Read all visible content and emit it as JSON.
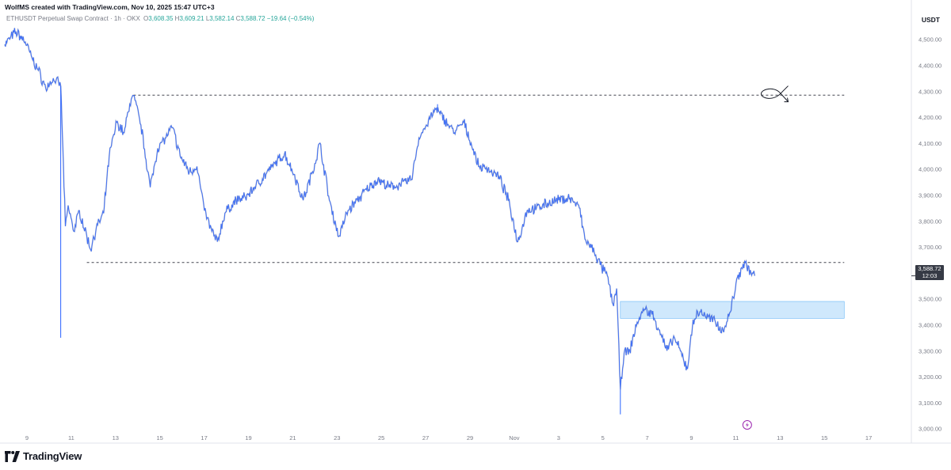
{
  "header": {
    "credit": "WolfMS created with TradingView.com, Nov 10, 2025 15:47 UTC+3",
    "symbol": "ETHUSDT Perpetual Swap Contract · 1h · OKX",
    "ohlc": {
      "o_label": "O",
      "o": "3,608.35",
      "h_label": "H",
      "h": "3,609.21",
      "l_label": "L",
      "l": "3,582.14",
      "c_label": "C",
      "c": "3,588.72",
      "change": "−19.64 (−0.54%)"
    },
    "currency": "USDT"
  },
  "price_tag": {
    "price": "3,588.72",
    "countdown": "12:03"
  },
  "brand": {
    "logo_text": "TradingView",
    "logo_icon": "tradingview-logo-icon"
  },
  "colors": {
    "series": "#2962ff",
    "series_alt": "#787b86",
    "level_line": "#434651",
    "zone_fill": "#bbdefb",
    "zone_border": "#64b5f6",
    "marker": "#9c27b0"
  },
  "chart_data": {
    "type": "line",
    "yaxis_labels": [
      "4,500.00",
      "4,400.00",
      "4,300.00",
      "4,200.00",
      "4,100.00",
      "4,000.00",
      "3,900.00",
      "3,800.00",
      "3,700.00",
      "3,600.00",
      "3,500.00",
      "3,400.00",
      "3,300.00",
      "3,200.00",
      "3,100.00",
      "3,000.00"
    ],
    "xaxis_labels": [
      "9",
      "11",
      "13",
      "15",
      "17",
      "19",
      "21",
      "23",
      "25",
      "27",
      "29",
      "Nov",
      "3",
      "5",
      "7",
      "9",
      "11",
      "13",
      "15",
      "17"
    ],
    "ylim": [
      2990,
      4560
    ],
    "x_range": [
      "2025-10-08T12:00",
      "2025-11-18T00:00"
    ],
    "series": [
      {
        "points": [
          [
            "2025-10-08T12:00",
            4480
          ],
          [
            "2025-10-09T00:00",
            4530
          ],
          [
            "2025-10-09T10:00",
            4490
          ],
          [
            "2025-10-09T18:00",
            4420
          ],
          [
            "2025-10-10T00:00",
            4380
          ],
          [
            "2025-10-10T08:00",
            4310
          ],
          [
            "2025-10-10T16:00",
            4350
          ],
          [
            "2025-10-11T00:00",
            4320
          ],
          [
            "2025-10-11T02:00",
            4110
          ],
          [
            "2025-10-11T05:00",
            3780
          ],
          [
            "2025-10-11T08:00",
            3860
          ],
          [
            "2025-10-11T14:00",
            3760
          ],
          [
            "2025-10-11T20:00",
            3840
          ],
          [
            "2025-10-12T04:00",
            3740
          ],
          [
            "2025-10-12T08:00",
            3690
          ],
          [
            "2025-10-12T14:00",
            3770
          ],
          [
            "2025-10-12T22:00",
            3830
          ],
          [
            "2025-10-13T04:00",
            4050
          ],
          [
            "2025-10-13T12:00",
            4180
          ],
          [
            "2025-10-13T20:00",
            4140
          ],
          [
            "2025-10-14T02:00",
            4250
          ],
          [
            "2025-10-14T06:00",
            4283
          ],
          [
            "2025-10-14T14:00",
            4170
          ],
          [
            "2025-10-15T00:00",
            3930
          ],
          [
            "2025-10-15T08:00",
            4080
          ],
          [
            "2025-10-15T16:00",
            4120
          ],
          [
            "2025-10-16T00:00",
            4160
          ],
          [
            "2025-10-16T08:00",
            4050
          ],
          [
            "2025-10-16T18:00",
            3990
          ],
          [
            "2025-10-17T02:00",
            4010
          ],
          [
            "2025-10-17T10:00",
            3840
          ],
          [
            "2025-10-17T18:00",
            3760
          ],
          [
            "2025-10-18T00:00",
            3720
          ],
          [
            "2025-10-18T08:00",
            3830
          ],
          [
            "2025-10-18T20:00",
            3880
          ],
          [
            "2025-10-19T06:00",
            3890
          ],
          [
            "2025-10-19T16:00",
            3930
          ],
          [
            "2025-10-20T04:00",
            3980
          ],
          [
            "2025-10-20T14:00",
            4020
          ],
          [
            "2025-10-21T00:00",
            4060
          ],
          [
            "2025-10-21T10:00",
            3980
          ],
          [
            "2025-10-21T20:00",
            3880
          ],
          [
            "2025-10-22T06:00",
            3990
          ],
          [
            "2025-10-22T14:00",
            4100
          ],
          [
            "2025-10-23T00:00",
            3880
          ],
          [
            "2025-10-23T10:00",
            3740
          ],
          [
            "2025-10-23T20:00",
            3840
          ],
          [
            "2025-10-24T06:00",
            3880
          ],
          [
            "2025-10-24T16:00",
            3920
          ],
          [
            "2025-10-25T04:00",
            3960
          ],
          [
            "2025-10-25T16:00",
            3930
          ],
          [
            "2025-10-26T04:00",
            3940
          ],
          [
            "2025-10-26T16:00",
            3960
          ],
          [
            "2025-10-27T00:00",
            4120
          ],
          [
            "2025-10-27T08:00",
            4170
          ],
          [
            "2025-10-27T18:00",
            4230
          ],
          [
            "2025-10-28T04:00",
            4190
          ],
          [
            "2025-10-28T14:00",
            4140
          ],
          [
            "2025-10-29T00:00",
            4180
          ],
          [
            "2025-10-29T08:00",
            4100
          ],
          [
            "2025-10-29T16:00",
            4010
          ],
          [
            "2025-10-30T02:00",
            4000
          ],
          [
            "2025-10-30T14:00",
            3970
          ],
          [
            "2025-10-31T00:00",
            3880
          ],
          [
            "2025-10-31T10:00",
            3720
          ],
          [
            "2025-10-31T20:00",
            3840
          ],
          [
            "2025-11-01T06:00",
            3850
          ],
          [
            "2025-11-01T18:00",
            3870
          ],
          [
            "2025-11-02T06:00",
            3880
          ],
          [
            "2025-11-02T18:00",
            3890
          ],
          [
            "2025-11-03T04:00",
            3850
          ],
          [
            "2025-11-03T10:00",
            3730
          ],
          [
            "2025-11-03T20:00",
            3680
          ],
          [
            "2025-11-04T04:00",
            3620
          ],
          [
            "2025-11-04T10:00",
            3590
          ],
          [
            "2025-11-04T16:00",
            3480
          ],
          [
            "2025-11-04T20:00",
            3540
          ],
          [
            "2025-11-05T00:00",
            3150
          ],
          [
            "2025-11-05T04:00",
            3290
          ],
          [
            "2025-11-05T10:00",
            3300
          ],
          [
            "2025-11-05T18:00",
            3410
          ],
          [
            "2025-11-06T02:00",
            3460
          ],
          [
            "2025-11-06T10:00",
            3440
          ],
          [
            "2025-11-06T18:00",
            3380
          ],
          [
            "2025-11-07T02:00",
            3300
          ],
          [
            "2025-11-07T10:00",
            3350
          ],
          [
            "2025-11-07T18:00",
            3280
          ],
          [
            "2025-11-08T00:00",
            3230
          ],
          [
            "2025-11-08T06:00",
            3420
          ],
          [
            "2025-11-08T14:00",
            3450
          ],
          [
            "2025-11-08T22:00",
            3430
          ],
          [
            "2025-11-09T06:00",
            3410
          ],
          [
            "2025-11-09T14:00",
            3380
          ],
          [
            "2025-11-09T22:00",
            3450
          ],
          [
            "2025-11-10T04:00",
            3560
          ],
          [
            "2025-11-10T10:00",
            3620
          ],
          [
            "2025-11-10T14:00",
            3640
          ],
          [
            "2025-11-10T20:00",
            3600
          ],
          [
            "2025-11-11T00:00",
            3588.72
          ]
        ]
      }
    ],
    "wicks": [
      [
        "2025-10-11T00:00",
        3350
      ],
      [
        "2025-11-05T00:00",
        3055
      ],
      [
        "2025-10-27T20:00",
        4250
      ]
    ],
    "annotations": {
      "horizontal_lines": [
        {
          "price": 4285,
          "from": "2025-10-14T06:00",
          "to": "2025-11-15T00:00",
          "style": "dashed"
        },
        {
          "price": 3640,
          "from": "2025-10-12T04:00",
          "to": "2025-11-15T00:00",
          "style": "dashed"
        }
      ],
      "zone": {
        "price_from": 3425,
        "price_to": 3490,
        "from": "2025-11-05T00:00",
        "to": "2025-11-15T00:00"
      },
      "path_icon": {
        "at": "2025-11-12T00:00",
        "price": 4290
      },
      "marker_icon": {
        "at": "2025-11-10T16:00",
        "price": 2990
      }
    },
    "grid": false,
    "legend": "none"
  }
}
